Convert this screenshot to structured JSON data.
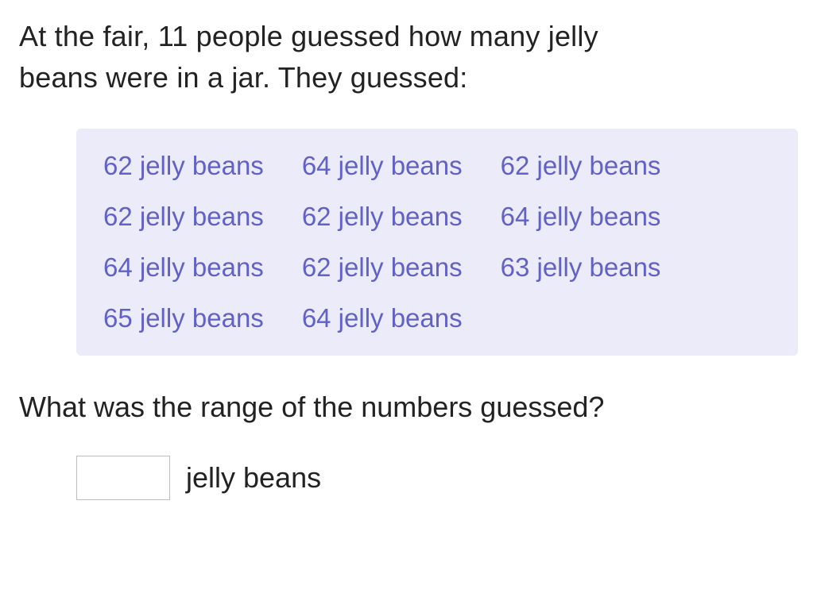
{
  "prompt": {
    "line1": "At the fair, 11 people guessed how many jelly",
    "line2": "beans were in a jar. They guessed:"
  },
  "dataBox": {
    "backgroundColor": "#ecebfa",
    "textColor": "#6161c6",
    "itemFontSize": 33,
    "items": [
      "62 jelly beans",
      "64 jelly beans",
      "62 jelly beans",
      "62 jelly beans",
      "62 jelly beans",
      "64 jelly beans",
      "64 jelly beans",
      "62 jelly beans",
      "63 jelly beans",
      "65 jelly beans",
      "64 jelly beans"
    ],
    "columns": 3
  },
  "question": "What was the range of the numbers guessed?",
  "answer": {
    "value": "",
    "unit": "jelly beans"
  },
  "colors": {
    "bodyBackground": "#ffffff",
    "promptText": "#222222",
    "inputBorder": "#bdbdbd"
  },
  "fontSizes": {
    "prompt": 36,
    "question": 36,
    "unit": 36
  }
}
